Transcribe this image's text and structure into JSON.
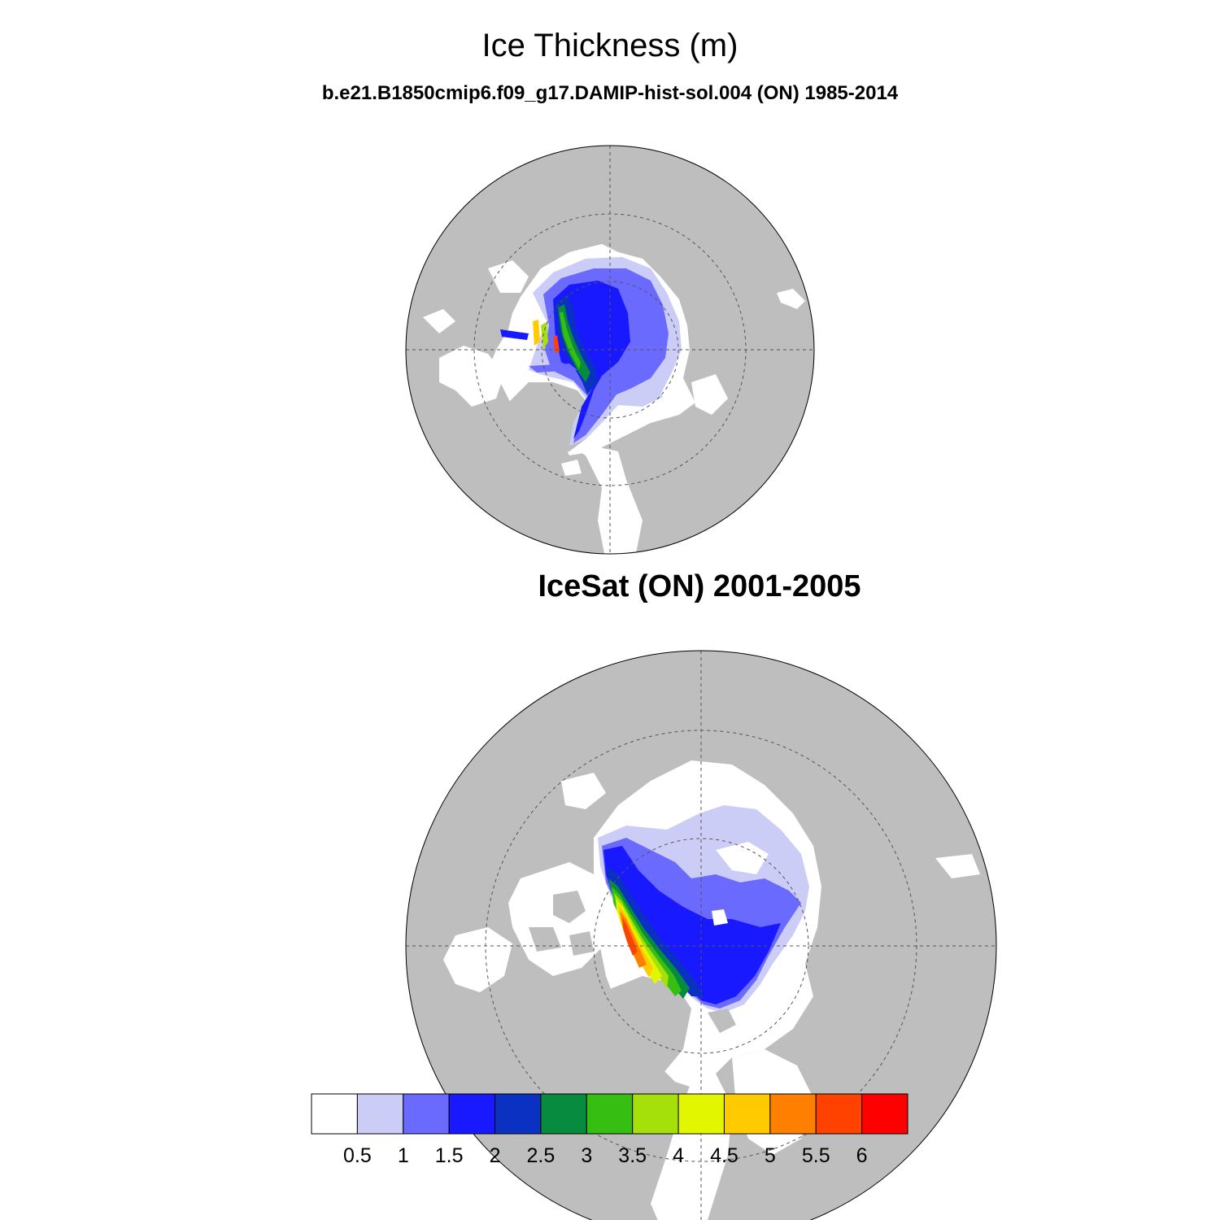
{
  "figure": {
    "title": "Ice Thickness (m)",
    "top_panel_title": "b.e21.B1850cmip6.f09_g17.DAMIP-hist-sol.004 (ON) 1985-2014",
    "bottom_panel_title": "IceSat (ON) 2001-2005"
  },
  "colors": {
    "land": "#bebebe",
    "ocean": "#ffffff",
    "grid": "#555555"
  },
  "colorbar": {
    "labels": [
      "0.5",
      "1",
      "1.5",
      "2",
      "2.5",
      "3",
      "3.5",
      "4",
      "4.5",
      "5",
      "5.5",
      "6"
    ],
    "colors": [
      "#ffffff",
      "#cccdf7",
      "#6a6aff",
      "#1919ff",
      "#0b31c3",
      "#068b3f",
      "#36bf12",
      "#a6e00a",
      "#e2f600",
      "#ffcb00",
      "#ff8000",
      "#ff4200",
      "#ff0000"
    ]
  },
  "chart_data": [
    {
      "type": "map",
      "name": "model",
      "projection": "north polar stereographic",
      "title": "b.e21.B1850cmip6.f09_g17.DAMIP-hist-sol.004 (ON) 1985-2014",
      "variable": "Ice Thickness (m)",
      "levels": [
        0.5,
        1,
        1.5,
        2,
        2.5,
        3,
        3.5,
        4,
        4.5,
        5,
        5.5,
        6
      ]
    },
    {
      "type": "map",
      "name": "observation",
      "projection": "north polar stereographic",
      "title": "IceSat (ON) 2001-2005",
      "variable": "Ice Thickness (m)",
      "levels": [
        0.5,
        1,
        1.5,
        2,
        2.5,
        3,
        3.5,
        4,
        4.5,
        5,
        5.5,
        6
      ]
    }
  ]
}
